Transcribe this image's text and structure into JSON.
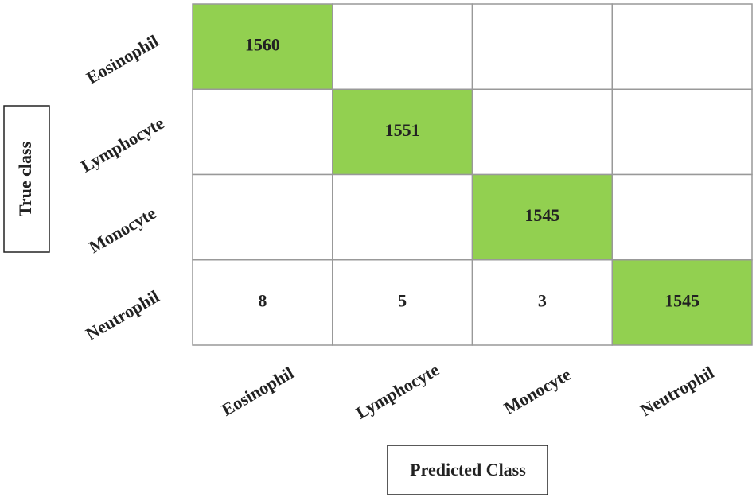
{
  "chart_data": {
    "type": "heatmap",
    "x_label": "Predicted Class",
    "y_label": "True class",
    "categories": [
      "Eosinophil",
      "Lymphocyte",
      "Monocyte",
      "Neutrophil"
    ],
    "values": [
      [
        1560,
        null,
        null,
        null
      ],
      [
        null,
        1551,
        null,
        null
      ],
      [
        null,
        null,
        1545,
        null
      ],
      [
        8,
        5,
        3,
        1545
      ]
    ],
    "diagonal_color": "#92d050"
  }
}
